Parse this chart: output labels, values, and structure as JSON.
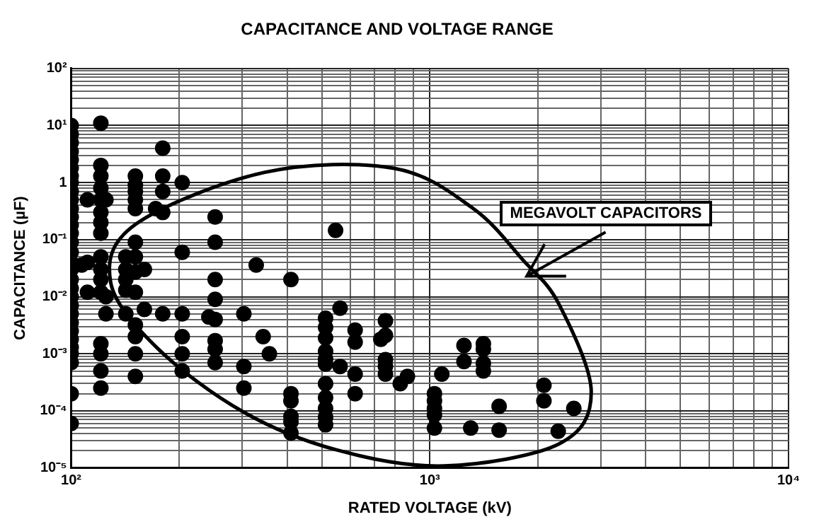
{
  "chart_data": {
    "type": "scatter",
    "title": "CAPACITANCE AND VOLTAGE RANGE",
    "xlabel": "RATED VOLTAGE (kV)",
    "ylabel": "CAPACITANCE (µF)",
    "annotations": [
      "MEGAVOLT CAPACITORS"
    ],
    "log": "xy",
    "grid": true,
    "legend": false,
    "marker": "circle",
    "xlim": [
      100,
      10000
    ],
    "ylim": [
      1e-05,
      100
    ],
    "xticks": [
      {
        "value": 100,
        "label": "10²"
      },
      {
        "value": 200,
        "label": null
      },
      {
        "value": 300,
        "label": null
      },
      {
        "value": 400,
        "label": null
      },
      {
        "value": 500,
        "label": null
      },
      {
        "value": 600,
        "label": null
      },
      {
        "value": 700,
        "label": null
      },
      {
        "value": 800,
        "label": null
      },
      {
        "value": 900,
        "label": null
      },
      {
        "value": 1000,
        "label": "10³"
      },
      {
        "value": 2000,
        "label": null
      },
      {
        "value": 3000,
        "label": null
      },
      {
        "value": 4000,
        "label": null
      },
      {
        "value": 5000,
        "label": null
      },
      {
        "value": 6000,
        "label": null
      },
      {
        "value": 7000,
        "label": null
      },
      {
        "value": 8000,
        "label": null
      },
      {
        "value": 9000,
        "label": null
      },
      {
        "value": 10000,
        "label": "10⁴"
      }
    ],
    "yticks": [
      {
        "value": 1e-05,
        "label": "10⁻⁵"
      },
      {
        "value": 2e-05,
        "label": null
      },
      {
        "value": 3e-05,
        "label": null
      },
      {
        "value": 4e-05,
        "label": null
      },
      {
        "value": 5e-05,
        "label": null
      },
      {
        "value": 6e-05,
        "label": null
      },
      {
        "value": 7e-05,
        "label": null
      },
      {
        "value": 8e-05,
        "label": null
      },
      {
        "value": 9e-05,
        "label": null
      },
      {
        "value": 0.0001,
        "label": "10⁻⁴"
      },
      {
        "value": 0.0002,
        "label": null
      },
      {
        "value": 0.0003,
        "label": null
      },
      {
        "value": 0.0004,
        "label": null
      },
      {
        "value": 0.0005,
        "label": null
      },
      {
        "value": 0.0006,
        "label": null
      },
      {
        "value": 0.0007,
        "label": null
      },
      {
        "value": 0.0008,
        "label": null
      },
      {
        "value": 0.0009,
        "label": null
      },
      {
        "value": 0.001,
        "label": "10⁻³"
      },
      {
        "value": 0.002,
        "label": null
      },
      {
        "value": 0.003,
        "label": null
      },
      {
        "value": 0.004,
        "label": null
      },
      {
        "value": 0.005,
        "label": null
      },
      {
        "value": 0.006,
        "label": null
      },
      {
        "value": 0.007,
        "label": null
      },
      {
        "value": 0.008,
        "label": null
      },
      {
        "value": 0.009,
        "label": null
      },
      {
        "value": 0.01,
        "label": "10⁻²"
      },
      {
        "value": 0.02,
        "label": null
      },
      {
        "value": 0.03,
        "label": null
      },
      {
        "value": 0.04,
        "label": null
      },
      {
        "value": 0.05,
        "label": null
      },
      {
        "value": 0.06,
        "label": null
      },
      {
        "value": 0.07,
        "label": null
      },
      {
        "value": 0.08,
        "label": null
      },
      {
        "value": 0.09,
        "label": null
      },
      {
        "value": 0.1,
        "label": "10⁻¹"
      },
      {
        "value": 0.2,
        "label": null
      },
      {
        "value": 0.3,
        "label": null
      },
      {
        "value": 0.4,
        "label": null
      },
      {
        "value": 0.5,
        "label": null
      },
      {
        "value": 0.6,
        "label": null
      },
      {
        "value": 0.7,
        "label": null
      },
      {
        "value": 0.8,
        "label": null
      },
      {
        "value": 0.9,
        "label": null
      },
      {
        "value": 1,
        "label": "1"
      },
      {
        "value": 2,
        "label": null
      },
      {
        "value": 3,
        "label": null
      },
      {
        "value": 4,
        "label": null
      },
      {
        "value": 5,
        "label": null
      },
      {
        "value": 6,
        "label": null
      },
      {
        "value": 7,
        "label": null
      },
      {
        "value": 8,
        "label": null
      },
      {
        "value": 9,
        "label": null
      },
      {
        "value": 10,
        "label": "10¹"
      },
      {
        "value": 20,
        "label": null
      },
      {
        "value": 30,
        "label": null
      },
      {
        "value": 40,
        "label": null
      },
      {
        "value": 50,
        "label": null
      },
      {
        "value": 60,
        "label": null
      },
      {
        "value": 70,
        "label": null
      },
      {
        "value": 80,
        "label": null
      },
      {
        "value": 90,
        "label": null
      },
      {
        "value": 100,
        "label": "10²"
      }
    ],
    "series": [
      {
        "color": "#000000",
        "x": [
          100,
          100,
          100,
          100,
          100,
          100,
          100,
          100,
          100,
          100,
          100,
          100,
          100,
          100,
          100,
          100,
          100,
          100,
          100,
          100,
          100,
          100,
          100,
          100,
          100,
          100,
          100,
          100,
          100,
          100,
          100,
          107,
          111,
          111,
          111,
          121,
          121,
          121,
          121,
          121,
          121,
          121,
          121,
          121,
          121,
          121,
          121,
          121,
          121,
          121,
          121,
          125,
          125,
          125,
          142,
          142,
          142,
          142,
          142,
          151,
          151,
          151,
          151,
          151,
          151,
          151,
          151,
          151,
          151,
          151,
          151,
          151,
          160,
          160,
          172,
          180,
          180,
          180,
          180,
          180,
          204,
          204,
          204,
          204,
          204,
          204,
          242,
          252,
          252,
          252,
          252,
          252,
          252,
          252,
          252,
          303,
          303,
          303,
          328,
          343,
          357,
          410,
          410,
          410,
          410,
          410,
          410,
          512,
          512,
          512,
          512,
          512,
          512,
          512,
          512,
          512,
          512,
          512,
          546,
          562,
          562,
          619,
          619,
          619,
          619,
          730,
          752,
          752,
          752,
          752,
          752,
          827,
          866,
          1030,
          1030,
          1030,
          1030,
          1030,
          1080,
          1245,
          1245,
          1300,
          1410,
          1410,
          1410,
          1410,
          1560,
          1560,
          2080,
          2080,
          2280,
          2520
        ],
        "values": [
          10,
          7,
          5,
          3.5,
          2.5,
          1.8,
          1.3,
          1,
          0.7,
          0.5,
          0.35,
          0.25,
          0.18,
          0.13,
          0.09,
          0.06,
          0.04,
          0.03,
          0.02,
          0.014,
          0.01,
          0.007,
          0.005,
          0.0035,
          0.0025,
          0.0018,
          0.0013,
          0.001,
          0.0007,
          0.0002,
          6e-05,
          0.036,
          0.5,
          0.04,
          0.012,
          11,
          2,
          1.3,
          0.8,
          0.5,
          0.3,
          0.2,
          0.13,
          0.05,
          0.03,
          0.02,
          0.012,
          0.0015,
          0.001,
          0.0005,
          0.00025,
          0.5,
          0.01,
          0.005,
          0.05,
          0.03,
          0.02,
          0.013,
          0.005,
          1.3,
          0.9,
          0.7,
          0.5,
          0.35,
          0.09,
          0.05,
          0.027,
          0.012,
          0.0032,
          0.002,
          0.001,
          0.0004,
          0.03,
          0.006,
          0.35,
          4,
          1.3,
          0.7,
          0.3,
          0.005,
          1,
          0.06,
          0.005,
          0.002,
          0.001,
          0.0005,
          0.0044,
          0.25,
          0.09,
          0.02,
          0.009,
          0.004,
          0.0017,
          0.0012,
          0.0007,
          0.005,
          0.0006,
          0.00025,
          0.036,
          0.002,
          0.001,
          0.02,
          0.0002,
          0.00015,
          8e-05,
          6.4e-05,
          4.1e-05,
          0.0042,
          0.0029,
          0.0019,
          0.0011,
          0.0008,
          0.00066,
          0.0003,
          0.00017,
          0.00011,
          7.7e-05,
          5.7e-05,
          0.145,
          0.0063,
          0.0006,
          0.0026,
          0.0016,
          0.00044,
          0.0002,
          0.0018,
          0.0038,
          0.0021,
          0.00079,
          0.0006,
          0.00044,
          0.0003,
          0.0004,
          0.0002,
          0.00015,
          0.00011,
          8.5e-05,
          5e-05,
          0.00044,
          0.0014,
          0.00073,
          5e-05,
          0.0015,
          0.0012,
          0.00068,
          0.0005,
          0.00012,
          4.6e-05,
          0.00028,
          0.00015,
          4.4e-05,
          0.00011
        ]
      }
    ]
  }
}
